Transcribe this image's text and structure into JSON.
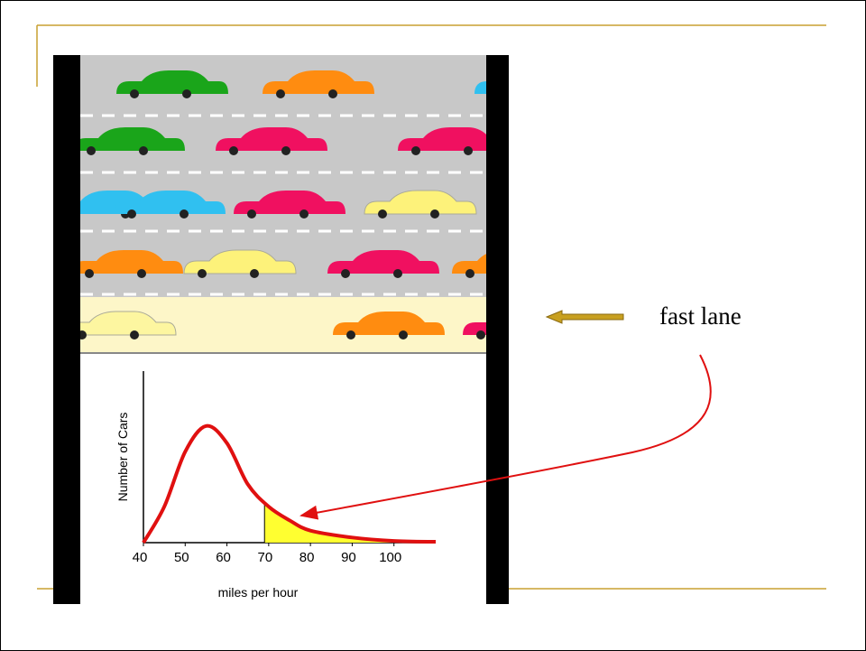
{
  "slide": {
    "annotation": "fast lane"
  },
  "chart_data": {
    "type": "line",
    "x": [
      40,
      45,
      50,
      55,
      60,
      65,
      70,
      75,
      80,
      90,
      100,
      110
    ],
    "values": [
      0,
      21,
      53,
      68,
      58,
      34,
      21,
      13,
      7,
      3,
      1,
      0.5
    ],
    "xlim": [
      40,
      110
    ],
    "ylim": [
      0,
      100
    ],
    "xticks": [
      40,
      50,
      60,
      70,
      80,
      90,
      100
    ],
    "xlabel": "miles per hour",
    "ylabel": "Number of Cars",
    "color": "#e01010",
    "highlight_from": 69,
    "highlight_color": "#ffff30"
  }
}
